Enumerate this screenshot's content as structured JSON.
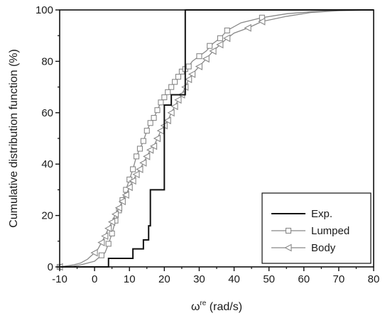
{
  "chart_data": {
    "type": "line",
    "xlabel": "ω",
    "xlabel_sup": "re",
    "xlabel_units": " (rad/s)",
    "ylabel": "Cumulative distribution function (%)",
    "xlim": [
      -10,
      80
    ],
    "ylim": [
      0,
      100
    ],
    "xticks": [
      -10,
      0,
      10,
      20,
      30,
      40,
      50,
      60,
      70,
      80
    ],
    "yticks": [
      0,
      20,
      40,
      60,
      80,
      100
    ],
    "grid": false,
    "legend_position": "bottom-right",
    "series": [
      {
        "name": "Exp.",
        "style": "step",
        "color": "#111111",
        "marker": "none",
        "points": [
          [
            -10,
            0
          ],
          [
            4,
            0
          ],
          [
            4,
            3.3
          ],
          [
            11,
            3.3
          ],
          [
            11,
            7
          ],
          [
            14,
            7
          ],
          [
            14,
            10.5
          ],
          [
            15.5,
            10.5
          ],
          [
            15.5,
            16
          ],
          [
            16,
            16
          ],
          [
            16,
            30
          ],
          [
            20,
            30
          ],
          [
            20,
            63
          ],
          [
            22,
            63
          ],
          [
            22,
            67
          ],
          [
            26,
            67
          ],
          [
            26,
            100
          ],
          [
            80,
            100
          ]
        ]
      },
      {
        "name": "Lumped",
        "style": "line",
        "color": "#888888",
        "marker": "square",
        "points": [
          [
            -10,
            0
          ],
          [
            -6,
            0.3
          ],
          [
            -4,
            0.8
          ],
          [
            -2,
            1.5
          ],
          [
            0,
            2.2
          ],
          [
            2,
            4.5
          ],
          [
            3,
            5.5
          ],
          [
            4,
            9
          ],
          [
            5,
            13
          ],
          [
            6,
            18
          ],
          [
            7,
            22
          ],
          [
            8,
            26
          ],
          [
            9,
            30
          ],
          [
            10,
            34
          ],
          [
            11,
            38
          ],
          [
            12,
            43
          ],
          [
            13,
            46
          ],
          [
            14,
            49
          ],
          [
            15,
            53
          ],
          [
            16,
            56
          ],
          [
            17,
            58
          ],
          [
            18,
            61
          ],
          [
            19,
            64
          ],
          [
            20,
            66
          ],
          [
            21,
            68
          ],
          [
            22,
            70
          ],
          [
            23,
            72
          ],
          [
            24,
            74
          ],
          [
            25,
            76
          ],
          [
            26,
            77
          ],
          [
            27,
            78
          ],
          [
            28,
            80
          ],
          [
            30,
            82
          ],
          [
            32,
            84
          ],
          [
            34,
            87
          ],
          [
            36,
            89
          ],
          [
            38,
            92
          ],
          [
            42,
            95
          ],
          [
            48,
            97
          ],
          [
            55,
            98.5
          ],
          [
            62,
            99.3
          ],
          [
            70,
            99.8
          ],
          [
            80,
            100
          ]
        ],
        "marker_points": [
          [
            -10,
            0
          ],
          [
            2,
            4.5
          ],
          [
            4,
            9
          ],
          [
            5,
            13
          ],
          [
            6,
            18
          ],
          [
            7,
            22
          ],
          [
            8,
            26
          ],
          [
            9,
            30
          ],
          [
            10,
            34
          ],
          [
            11,
            38
          ],
          [
            12,
            43
          ],
          [
            13,
            46
          ],
          [
            14,
            49
          ],
          [
            15,
            53
          ],
          [
            16,
            56
          ],
          [
            17,
            58
          ],
          [
            18,
            61
          ],
          [
            19,
            64
          ],
          [
            20,
            66
          ],
          [
            21,
            68
          ],
          [
            22,
            70
          ],
          [
            23,
            72
          ],
          [
            24,
            74
          ],
          [
            25,
            76
          ],
          [
            26,
            77
          ],
          [
            27,
            78
          ],
          [
            30,
            82
          ],
          [
            33,
            86
          ],
          [
            36,
            89
          ],
          [
            38,
            92
          ],
          [
            48,
            97
          ]
        ]
      },
      {
        "name": "Body",
        "style": "line",
        "color": "#888888",
        "marker": "triangle-left",
        "points": [
          [
            -10,
            0
          ],
          [
            -6,
            0.8
          ],
          [
            -4,
            1.5
          ],
          [
            -2,
            3
          ],
          [
            0,
            5.5
          ],
          [
            1,
            7
          ],
          [
            2,
            9.5
          ],
          [
            3,
            12
          ],
          [
            4,
            15
          ],
          [
            5,
            17.5
          ],
          [
            6,
            20.5
          ],
          [
            7,
            23
          ],
          [
            8,
            25.5
          ],
          [
            9,
            28
          ],
          [
            10,
            31
          ],
          [
            11,
            33.5
          ],
          [
            12,
            36
          ],
          [
            13,
            38
          ],
          [
            14,
            40.5
          ],
          [
            15,
            43
          ],
          [
            16,
            45.5
          ],
          [
            17,
            47
          ],
          [
            18,
            50
          ],
          [
            19,
            53
          ],
          [
            20,
            55
          ],
          [
            21,
            57
          ],
          [
            22,
            60
          ],
          [
            23,
            62.5
          ],
          [
            24,
            65
          ],
          [
            25,
            67
          ],
          [
            26,
            70
          ],
          [
            27,
            73
          ],
          [
            28,
            75
          ],
          [
            30,
            78
          ],
          [
            32,
            81
          ],
          [
            34,
            84
          ],
          [
            36,
            86.5
          ],
          [
            38,
            89
          ],
          [
            40,
            91
          ],
          [
            44,
            93
          ],
          [
            48,
            95.5
          ],
          [
            55,
            97.5
          ],
          [
            62,
            99
          ],
          [
            70,
            99.7
          ],
          [
            80,
            100
          ]
        ],
        "marker_points": [
          [
            -10,
            0
          ],
          [
            0,
            5.5
          ],
          [
            2,
            9.5
          ],
          [
            3,
            12
          ],
          [
            4,
            15
          ],
          [
            5,
            17.5
          ],
          [
            6,
            20.5
          ],
          [
            7,
            23
          ],
          [
            8,
            25.5
          ],
          [
            9,
            28
          ],
          [
            10,
            31
          ],
          [
            11,
            33.5
          ],
          [
            12,
            36
          ],
          [
            13,
            38
          ],
          [
            14,
            40.5
          ],
          [
            15,
            43
          ],
          [
            16,
            45.5
          ],
          [
            17,
            47
          ],
          [
            18,
            50
          ],
          [
            19,
            53
          ],
          [
            20,
            55
          ],
          [
            21,
            57
          ],
          [
            22,
            60
          ],
          [
            23,
            62.5
          ],
          [
            24,
            65
          ],
          [
            25,
            67
          ],
          [
            26,
            70
          ],
          [
            27,
            73
          ],
          [
            28,
            75
          ],
          [
            30,
            78
          ],
          [
            32,
            81
          ],
          [
            34,
            84
          ],
          [
            36,
            86.5
          ],
          [
            38,
            89
          ],
          [
            44,
            93
          ],
          [
            48,
            95.5
          ]
        ]
      }
    ]
  }
}
